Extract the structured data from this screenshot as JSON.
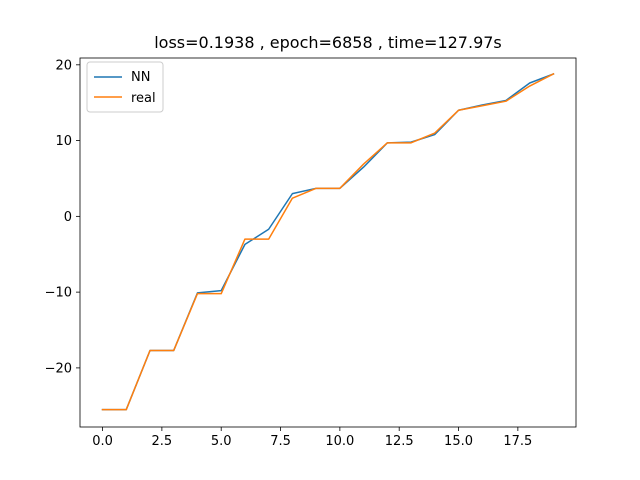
{
  "chart_data": {
    "type": "line",
    "title": "loss=0.1938 , epoch=6858 , time=127.97s",
    "xlabel": "",
    "ylabel": "",
    "xlim": [
      -0.95,
      19.95
    ],
    "ylim": [
      -27.8,
      20.9
    ],
    "grid": false,
    "legend_position": "upper-left",
    "x_ticks": [
      0.0,
      2.5,
      5.0,
      7.5,
      10.0,
      12.5,
      15.0,
      17.5
    ],
    "x_tick_labels": [
      "0.0",
      "2.5",
      "5.0",
      "7.5",
      "10.0",
      "12.5",
      "15.0",
      "17.5"
    ],
    "y_ticks": [
      -20,
      -10,
      0,
      10,
      20
    ],
    "y_tick_labels": [
      "−20",
      "−10",
      "0",
      "10",
      "20"
    ],
    "x": [
      0,
      1,
      2,
      3,
      4,
      5,
      6,
      7,
      8,
      9,
      10,
      11,
      12,
      13,
      14,
      15,
      16,
      17,
      18,
      19
    ],
    "series": [
      {
        "name": "NN",
        "color": "#1f77b4",
        "values": [
          -25.5,
          -25.5,
          -17.7,
          -17.7,
          -10.1,
          -9.8,
          -3.7,
          -1.7,
          3.0,
          3.7,
          3.7,
          6.5,
          9.7,
          9.8,
          10.8,
          14.0,
          14.7,
          15.3,
          17.6,
          18.8
        ]
      },
      {
        "name": "real",
        "color": "#ff7f0e",
        "values": [
          -25.5,
          -25.5,
          -17.7,
          -17.7,
          -10.2,
          -10.2,
          -3.0,
          -3.0,
          2.4,
          3.7,
          3.7,
          6.9,
          9.7,
          9.7,
          11.0,
          14.0,
          14.6,
          15.2,
          17.2,
          18.8
        ]
      }
    ]
  }
}
